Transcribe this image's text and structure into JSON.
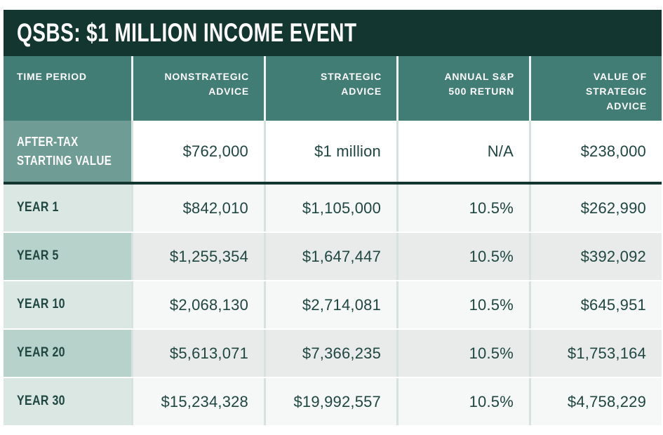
{
  "title": "QSBS: $1 MILLION INCOME EVENT",
  "colors": {
    "dark_teal": "#143630",
    "header_teal": "#417c75",
    "aftertax_row_teal": "#6f9c95",
    "year_label_light": "#dae7e3",
    "year_label_mid": "#b7d1cb",
    "row_bg_light": "#f6f8f7",
    "row_bg_gray": "#e9ebea",
    "text_dark_teal": "#1f4640",
    "divider_light": "#d5e2de"
  },
  "table": {
    "header_display": [
      "TIME PERIOD",
      "NONSTRATEGIC\nADVICE",
      "STRATEGIC\nADVICE",
      "ANNUAL S&P\n500 RETURN",
      "VALUE OF\nSTRATEGIC\nADVICE"
    ],
    "label_display": [
      "AFTER-TAX\nSTARTING VALUE",
      "YEAR 1",
      "YEAR 5",
      "YEAR 10",
      "YEAR 20",
      "YEAR 30"
    ]
  },
  "chart_data": {
    "type": "table",
    "title": "QSBS: $1 MILLION INCOME EVENT",
    "columns": [
      "TIME PERIOD",
      "NONSTRATEGIC ADVICE",
      "STRATEGIC ADVICE",
      "ANNUAL S&P 500 RETURN",
      "VALUE OF STRATEGIC ADVICE"
    ],
    "rows": [
      [
        "AFTER-TAX STARTING VALUE",
        "$762,000",
        "$1 million",
        "N/A",
        "$238,000"
      ],
      [
        "YEAR 1",
        "$842,010",
        "$1,105,000",
        "10.5%",
        "$262,990"
      ],
      [
        "YEAR 5",
        "$1,255,354",
        "$1,647,447",
        "10.5%",
        "$392,092"
      ],
      [
        "YEAR 10",
        "$2,068,130",
        "$2,714,081",
        "10.5%",
        "$645,951"
      ],
      [
        "YEAR 20",
        "$5,613,071",
        "$7,366,235",
        "10.5%",
        "$1,753,164"
      ],
      [
        "YEAR 30",
        "$15,234,328",
        "$19,992,557",
        "10.5%",
        "$4,758,229"
      ]
    ]
  }
}
